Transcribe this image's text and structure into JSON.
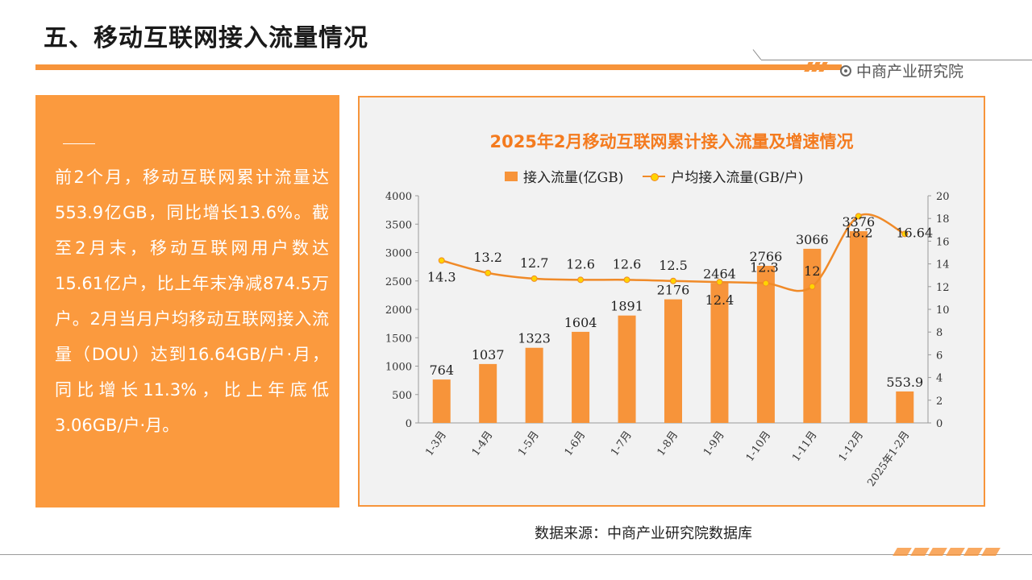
{
  "page": {
    "title": "五、移动互联网接入流量情况",
    "brand": "中商产业研究院",
    "source": "数据来源：中商产业研究院数据库"
  },
  "panel": {
    "text": "前2个月，移动互联网累计流量达553.9亿GB，同比增长13.6%。截至2月末，移动互联网用户数达15.61亿户，比上年末净减874.5万户。2月当月户均移动互联网接入流量（DOU）达到16.64GB/户·月，同比增长11.3%，比上年底低3.06GB/户·月。"
  },
  "colors": {
    "accent": "#f7943a",
    "line": "#f08a28",
    "marker": "#ffd400",
    "title": "#f47b1f"
  },
  "chart_data": {
    "type": "bar",
    "title": "2025年2月移动互联网累计接入流量及增速情况",
    "categories": [
      "1-3月",
      "1-4月",
      "1-5月",
      "1-6月",
      "1-7月",
      "1-8月",
      "1-9月",
      "1-10月",
      "1-11月",
      "1-12月",
      "2025年1-2月"
    ],
    "series": [
      {
        "name": "接入流量(亿GB)",
        "type": "bar",
        "axis": "left",
        "values": [
          764,
          1037,
          1323,
          1604,
          1891,
          2176,
          2464,
          2766,
          3066,
          3376,
          553.9
        ],
        "labels": [
          "764",
          "1037",
          "1323",
          "1604",
          "1891",
          "2176",
          "2464",
          "2766",
          "3066",
          "3376",
          "553.9"
        ]
      },
      {
        "name": "户均接入流量(GB/户)",
        "type": "line",
        "axis": "right",
        "values": [
          14.3,
          13.2,
          12.7,
          12.6,
          12.6,
          12.5,
          12.4,
          12.3,
          12,
          18.2,
          16.64
        ],
        "labels": [
          "14.3",
          "13.2",
          "12.7",
          "12.6",
          "12.6",
          "12.5",
          "12.4",
          "12.3",
          "12",
          "18.2",
          "16.64"
        ]
      }
    ],
    "y_left": {
      "min": 0,
      "max": 4000,
      "ticks": [
        "0",
        "500",
        "1000",
        "1500",
        "2000",
        "2500",
        "3000",
        "3500",
        "4000"
      ]
    },
    "y_right": {
      "min": 0,
      "max": 20,
      "ticks": [
        "0",
        "2",
        "4",
        "6",
        "8",
        "10",
        "12",
        "14",
        "16",
        "18",
        "20"
      ]
    },
    "legend": "top",
    "grid": false
  }
}
